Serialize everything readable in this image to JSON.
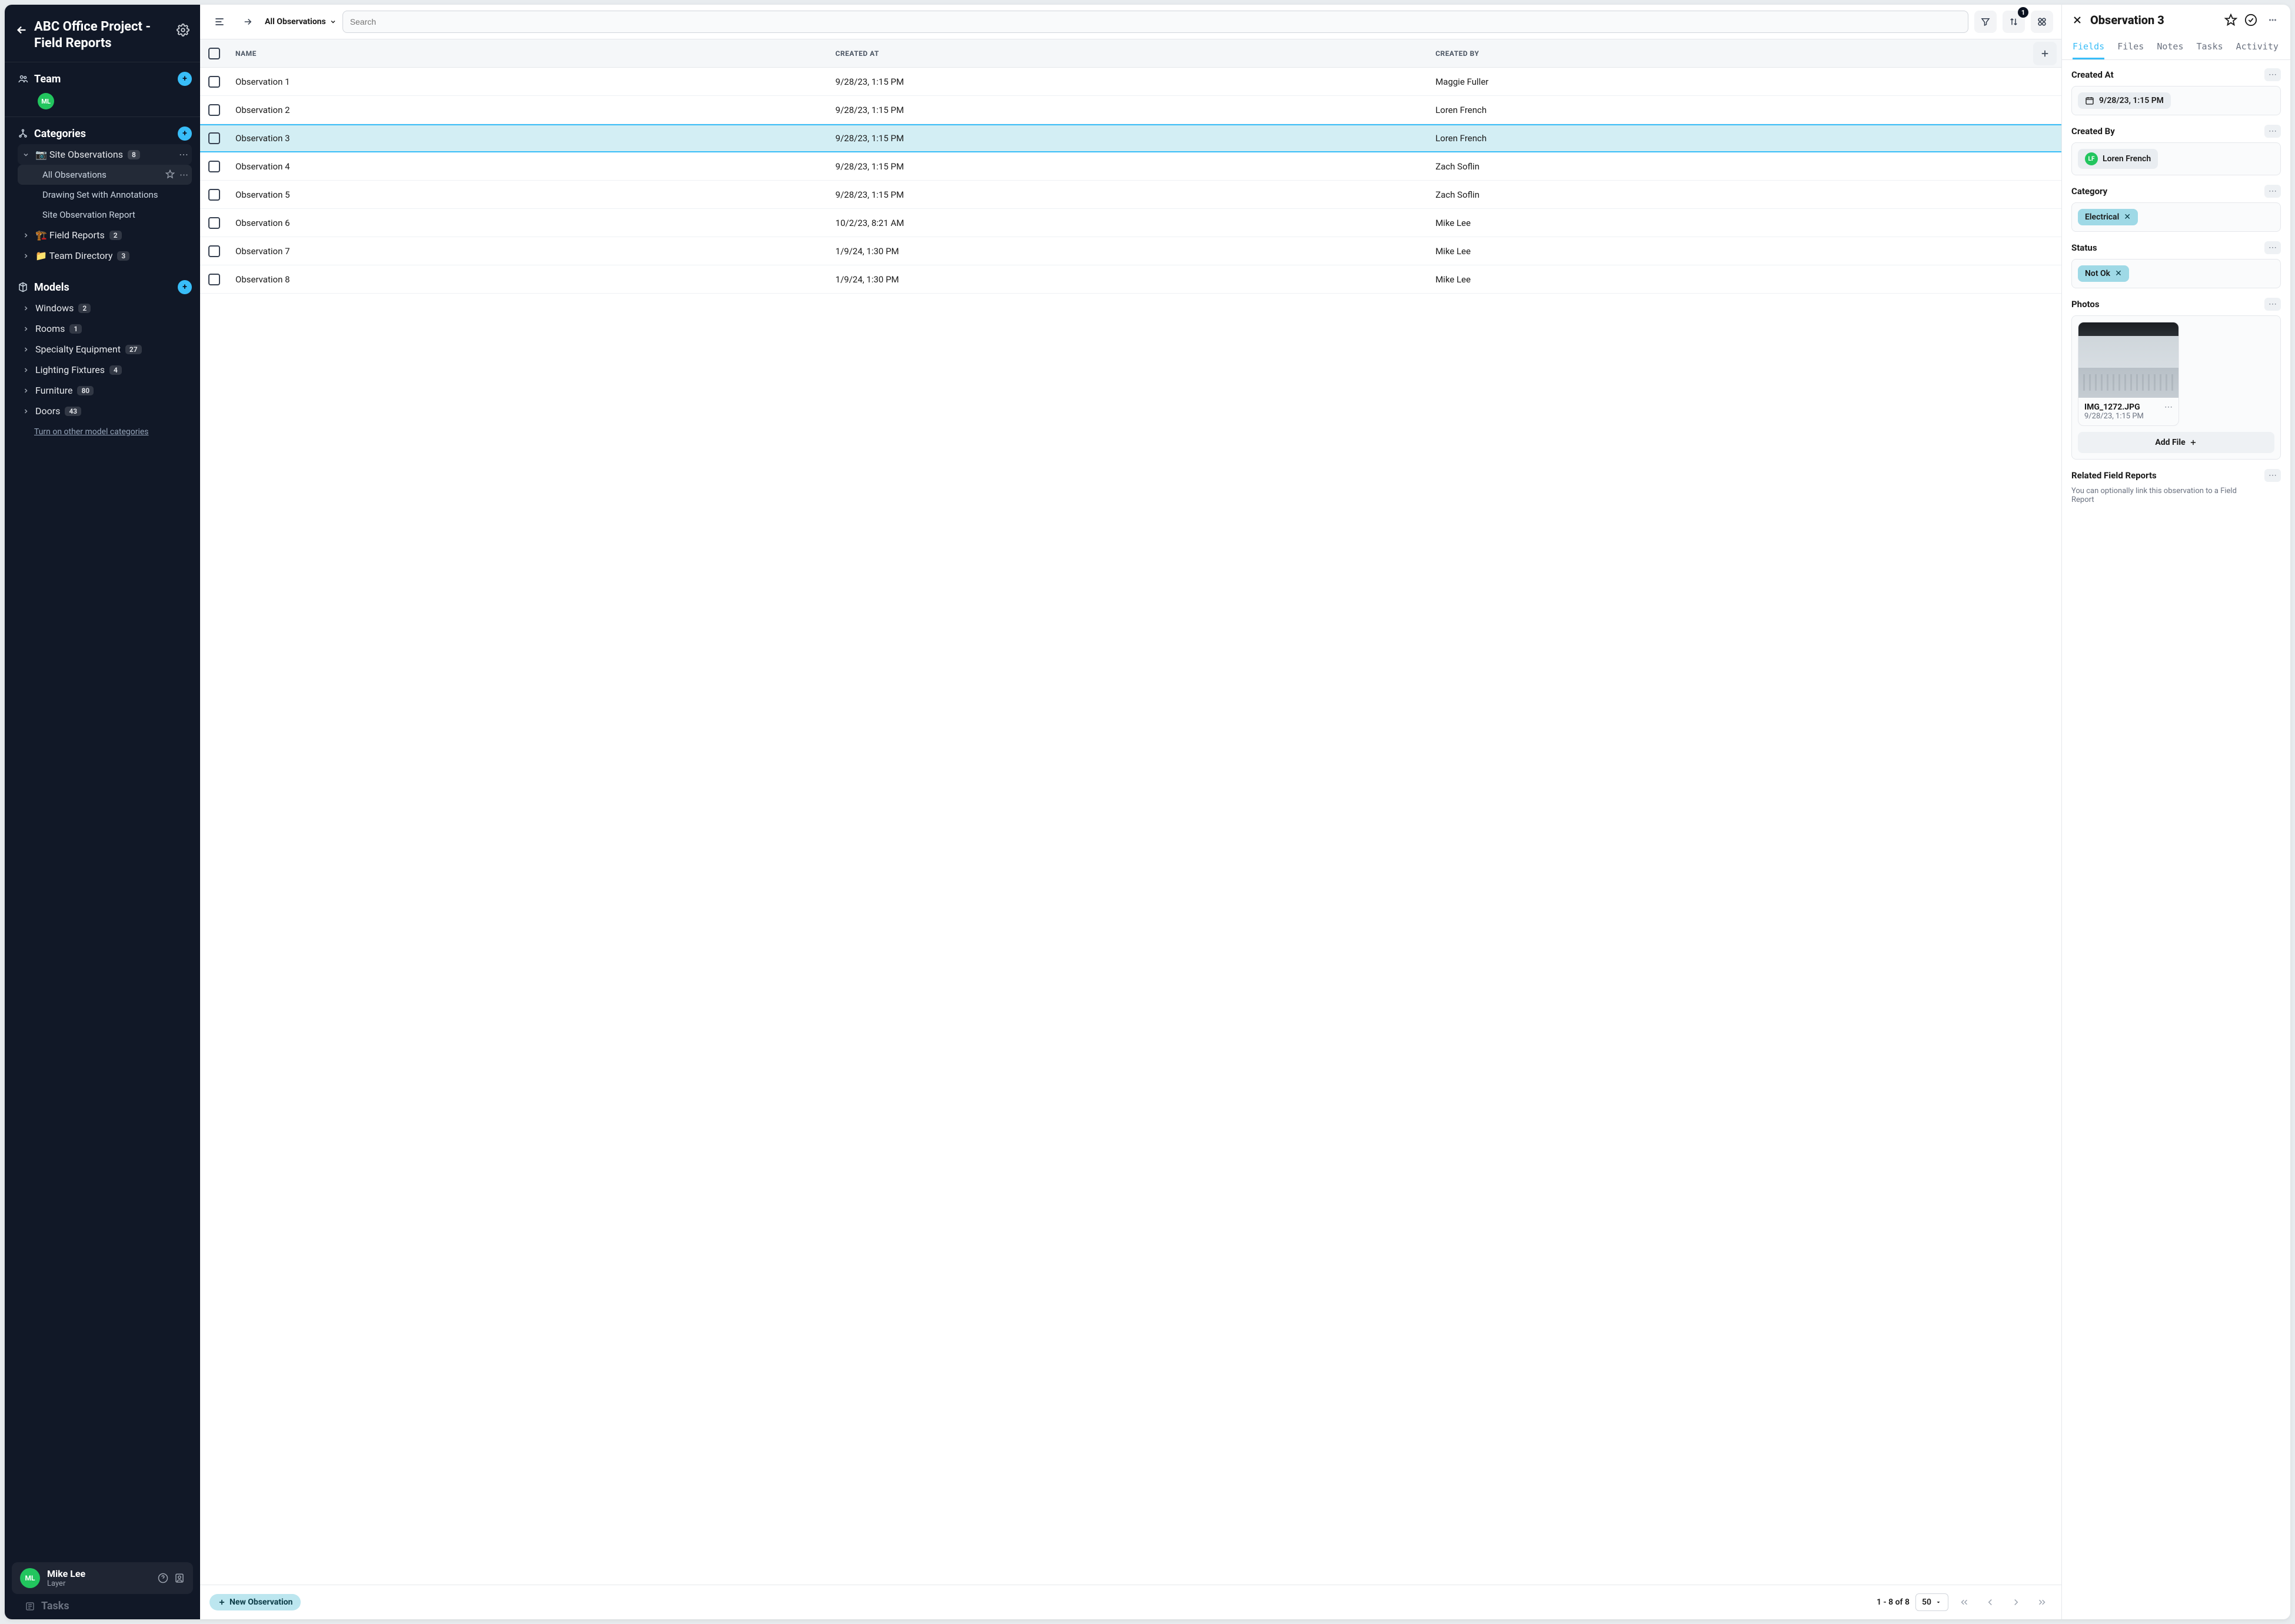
{
  "project_title": "ABC Office Project - Field Reports",
  "sidebar": {
    "team": {
      "title": "Team",
      "members": [
        {
          "initials": "ML"
        }
      ]
    },
    "categories": {
      "title": "Categories",
      "items": [
        {
          "id": "site-obs",
          "label": "Site Observations",
          "count": "8",
          "expanded": true,
          "icon": "📷",
          "children": [
            {
              "id": "all-obs",
              "label": "All Observations",
              "active": true,
              "starrable": true
            },
            {
              "id": "drawing-set",
              "label": "Drawing Set with Annotations"
            },
            {
              "id": "site-obs-report",
              "label": "Site Observation Report"
            }
          ]
        },
        {
          "id": "field-reports",
          "label": "Field Reports",
          "count": "2",
          "icon": "🏗️"
        },
        {
          "id": "team-dir",
          "label": "Team Directory",
          "count": "3",
          "icon": "📁"
        }
      ]
    },
    "models": {
      "title": "Models",
      "items": [
        {
          "id": "windows",
          "label": "Windows",
          "count": "2"
        },
        {
          "id": "rooms",
          "label": "Rooms",
          "count": "1"
        },
        {
          "id": "specialty",
          "label": "Specialty Equipment",
          "count": "27"
        },
        {
          "id": "lighting",
          "label": "Lighting Fixtures",
          "count": "4"
        },
        {
          "id": "furniture",
          "label": "Furniture",
          "count": "80"
        },
        {
          "id": "doors",
          "label": "Doors",
          "count": "43"
        }
      ],
      "more_link": "Turn on other model categories"
    },
    "user": {
      "name": "Mike Lee",
      "org": "Layer",
      "initials": "ML"
    },
    "tasks_label": "Tasks"
  },
  "toolbar": {
    "breadcrumb": "All Observations",
    "search_placeholder": "Search",
    "sort_badge": "1"
  },
  "table": {
    "columns": [
      "NAME",
      "CREATED AT",
      "CREATED BY"
    ],
    "rows": [
      {
        "name": "Observation 1",
        "created_at": "9/28/23, 1:15 PM",
        "created_by": "Maggie Fuller"
      },
      {
        "name": "Observation 2",
        "created_at": "9/28/23, 1:15 PM",
        "created_by": "Loren French"
      },
      {
        "name": "Observation 3",
        "created_at": "9/28/23, 1:15 PM",
        "created_by": "Loren French",
        "selected": true
      },
      {
        "name": "Observation 4",
        "created_at": "9/28/23, 1:15 PM",
        "created_by": "Zach Soflin"
      },
      {
        "name": "Observation 5",
        "created_at": "9/28/23, 1:15 PM",
        "created_by": "Zach Soflin"
      },
      {
        "name": "Observation 6",
        "created_at": "10/2/23, 8:21 AM",
        "created_by": "Mike Lee"
      },
      {
        "name": "Observation 7",
        "created_at": "1/9/24, 1:30 PM",
        "created_by": "Mike Lee"
      },
      {
        "name": "Observation 8",
        "created_at": "1/9/24, 1:30 PM",
        "created_by": "Mike Lee"
      }
    ]
  },
  "footer": {
    "new_button": "New Observation",
    "range": "1 - 8 of 8",
    "page_size": "50"
  },
  "detail": {
    "title": "Observation 3",
    "tabs": [
      "Fields",
      "Files",
      "Notes",
      "Tasks",
      "Activity"
    ],
    "active_tab": "Fields",
    "fields": {
      "created_at": {
        "label": "Created At",
        "value": "9/28/23, 1:15 PM"
      },
      "created_by": {
        "label": "Created By",
        "value": "Loren French",
        "initials": "LF"
      },
      "category": {
        "label": "Category",
        "value": "Electrical"
      },
      "status": {
        "label": "Status",
        "value": "Not Ok"
      },
      "photos": {
        "label": "Photos",
        "file_name": "IMG_1272.JPG",
        "file_date": "9/28/23, 1:15 PM",
        "add_label": "Add File"
      },
      "related": {
        "label": "Related Field Reports",
        "sub": "You can optionally link this observation to a Field Report"
      }
    }
  }
}
